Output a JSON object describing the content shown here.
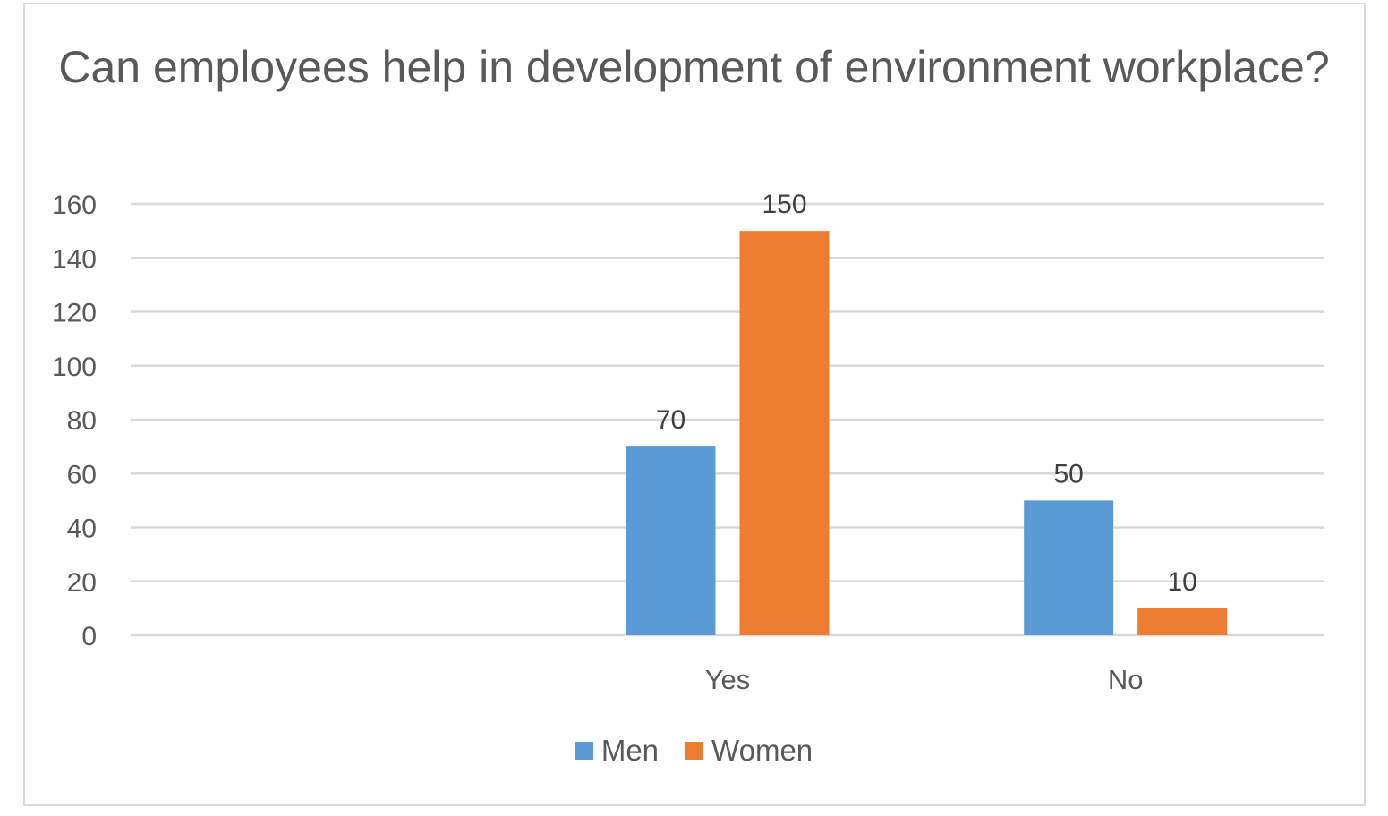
{
  "chart_data": {
    "type": "bar",
    "title": "Can employees help in development of environment workplace?",
    "categories": [
      "",
      "Yes",
      "No"
    ],
    "series": [
      {
        "name": "Men",
        "color": "#5b9bd5",
        "values": [
          null,
          70,
          50
        ]
      },
      {
        "name": "Women",
        "color": "#ed7d31",
        "values": [
          null,
          150,
          10
        ]
      }
    ],
    "xlabel": "",
    "ylabel": "",
    "ylim": [
      0,
      160
    ],
    "yticks": [
      0,
      20,
      40,
      60,
      80,
      100,
      120,
      140,
      160
    ],
    "grid": true,
    "legend_position": "bottom",
    "data_labels": true
  }
}
